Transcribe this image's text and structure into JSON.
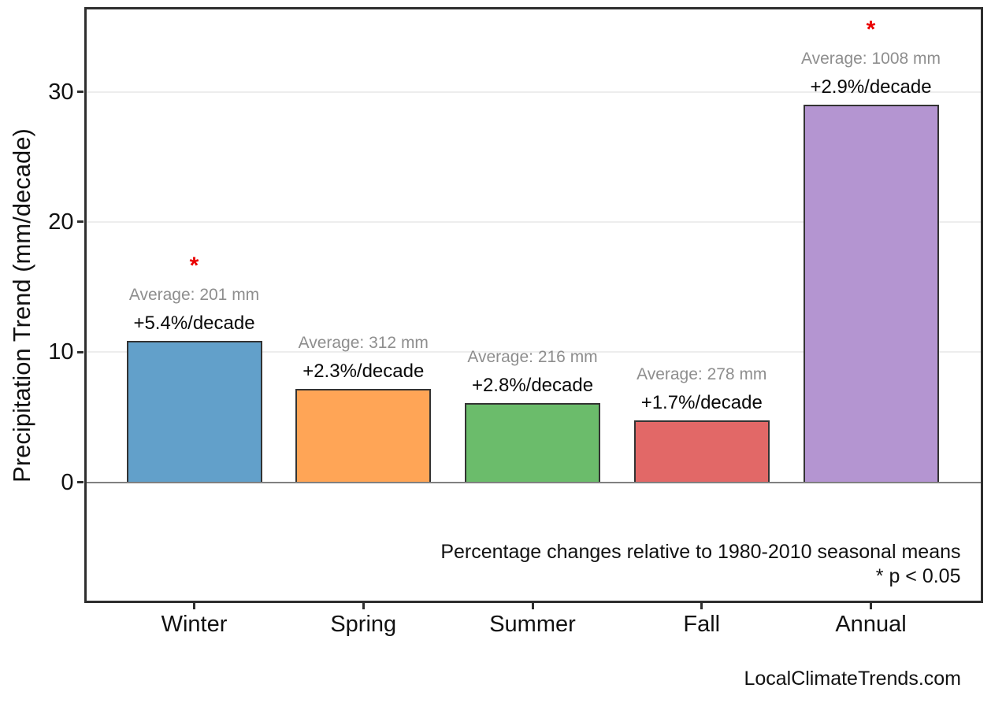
{
  "watermark": "LocalClimateTrends.com",
  "colors": {
    "bar_edge": "#333333",
    "spine": "#2e2e2e",
    "zero_line": "#808080",
    "gridline": "#ededed",
    "average_text": "#8e8e8e",
    "percent_text": "#0a0a0a",
    "significance_marker": "#ea0000"
  },
  "chart_data": {
    "type": "bar",
    "title": "",
    "xlabel": "",
    "ylabel": "Precipitation Trend (mm/decade)",
    "categories": [
      "Winter",
      "Spring",
      "Summer",
      "Fall",
      "Annual"
    ],
    "values": [
      10.85,
      7.18,
      6.05,
      4.73,
      29.0
    ],
    "bar_colors": [
      "#62a0ca",
      "#ffa556",
      "#6bbc6b",
      "#e26867",
      "#b495d1"
    ],
    "averages_mm": [
      201,
      312,
      216,
      278,
      1008
    ],
    "average_labels": [
      "Average: 201 mm",
      "Average: 312 mm",
      "Average: 216 mm",
      "Average: 278 mm",
      "Average: 1008 mm"
    ],
    "percent_labels": [
      "+5.4%/decade",
      "+2.3%/decade",
      "+2.8%/decade",
      "+1.7%/decade",
      "+2.9%/decade"
    ],
    "significant": [
      true,
      false,
      false,
      false,
      true
    ],
    "significance_marker": "*",
    "yticks": [
      0,
      10,
      20,
      30
    ],
    "ylim": [
      -9.1,
      36.4
    ],
    "grid": "horizontal",
    "legend": "none",
    "annotations": [
      "Percentage changes relative to 1980-2010 seasonal means",
      "* p < 0.05"
    ]
  }
}
